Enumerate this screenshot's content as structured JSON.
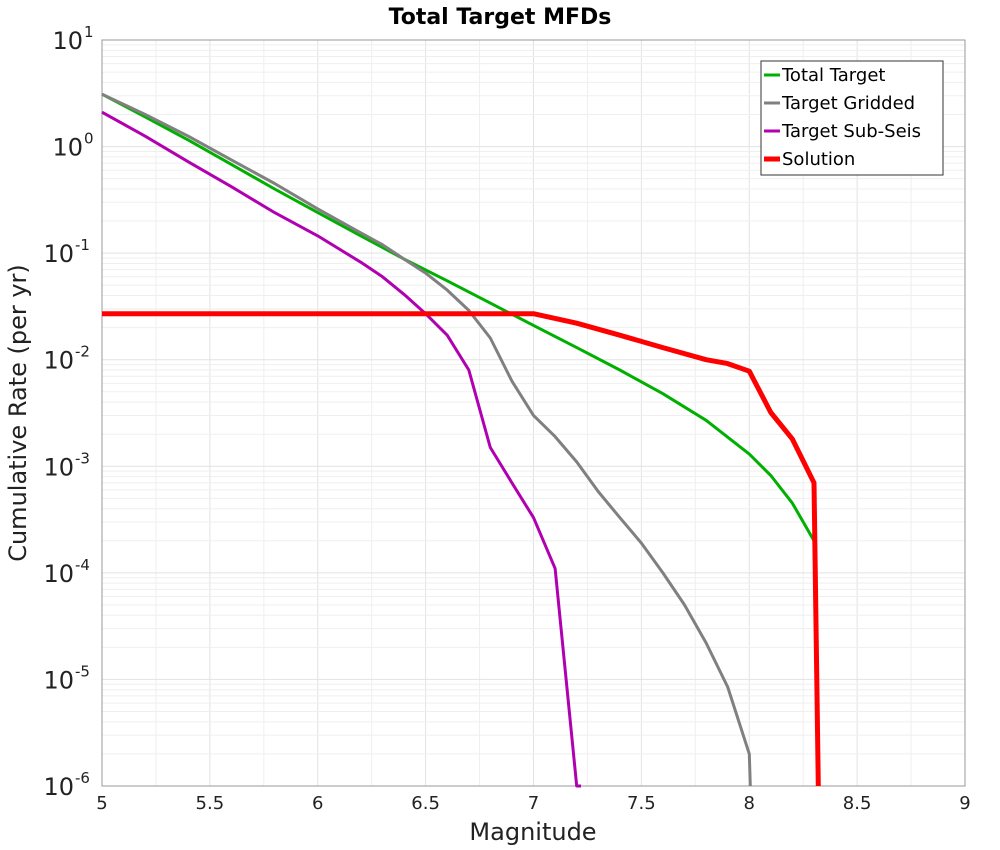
{
  "chart_data": {
    "type": "line",
    "title": "Total Target MFDs",
    "xlabel": "Magnitude",
    "ylabel": "Cumulative Rate (per yr)",
    "xlim": [
      5,
      9
    ],
    "ylim": [
      1e-06,
      10
    ],
    "yscale": "log",
    "x_ticks": [
      "5",
      "5.5",
      "6",
      "6.5",
      "7",
      "7.5",
      "8",
      "8.5",
      "9"
    ],
    "y_ticks": [
      {
        "base": "10",
        "exp": "1"
      },
      {
        "base": "10",
        "exp": "0"
      },
      {
        "base": "10",
        "exp": "-1"
      },
      {
        "base": "10",
        "exp": "-2"
      },
      {
        "base": "10",
        "exp": "-3"
      },
      {
        "base": "10",
        "exp": "-4"
      },
      {
        "base": "10",
        "exp": "-5"
      },
      {
        "base": "10",
        "exp": "-6"
      }
    ],
    "grid": true,
    "legend_position": "top-right",
    "series": [
      {
        "name": "Total Target",
        "color": "#00b000",
        "width": 3,
        "x": [
          5.0,
          5.2,
          5.4,
          5.6,
          5.8,
          6.0,
          6.2,
          6.4,
          6.6,
          6.8,
          7.0,
          7.2,
          7.4,
          7.6,
          7.8,
          8.0,
          8.1,
          8.2,
          8.3
        ],
        "y": [
          3.1,
          1.9,
          1.15,
          0.68,
          0.4,
          0.24,
          0.145,
          0.088,
          0.055,
          0.034,
          0.021,
          0.013,
          0.008,
          0.0048,
          0.0027,
          0.0013,
          0.00082,
          0.00045,
          0.0002
        ]
      },
      {
        "name": "Target Gridded",
        "color": "#808080",
        "width": 3,
        "x": [
          5.0,
          5.2,
          5.4,
          5.6,
          5.8,
          6.0,
          6.2,
          6.3,
          6.4,
          6.5,
          6.6,
          6.7,
          6.8,
          6.9,
          7.0,
          7.1,
          7.2,
          7.3,
          7.4,
          7.5,
          7.6,
          7.7,
          7.8,
          7.9,
          8.0,
          8.005
        ],
        "y": [
          3.1,
          2.0,
          1.25,
          0.75,
          0.45,
          0.26,
          0.155,
          0.12,
          0.088,
          0.065,
          0.045,
          0.029,
          0.016,
          0.0063,
          0.003,
          0.0019,
          0.0011,
          0.00058,
          0.00033,
          0.00019,
          0.0001,
          5e-05,
          2.2e-05,
          8.5e-06,
          2e-06,
          1e-06
        ]
      },
      {
        "name": "Target Sub-Seis",
        "color": "#b000b0",
        "width": 3,
        "x": [
          5.0,
          5.2,
          5.4,
          5.6,
          5.8,
          6.0,
          6.2,
          6.3,
          6.4,
          6.5,
          6.6,
          6.7,
          6.8,
          6.9,
          7.0,
          7.1,
          7.2,
          7.22
        ],
        "y": [
          2.1,
          1.25,
          0.72,
          0.42,
          0.24,
          0.145,
          0.082,
          0.06,
          0.041,
          0.027,
          0.017,
          0.008,
          0.0015,
          0.0007,
          0.00033,
          0.00011,
          1e-06,
          1e-06
        ]
      },
      {
        "name": "Solution",
        "color": "#ff0000",
        "width": 5,
        "x": [
          5.0,
          5.5,
          6.0,
          6.5,
          6.9,
          7.0,
          7.2,
          7.4,
          7.6,
          7.8,
          7.9,
          8.0,
          8.1,
          8.2,
          8.3,
          8.32
        ],
        "y": [
          0.027,
          0.027,
          0.027,
          0.027,
          0.027,
          0.027,
          0.022,
          0.017,
          0.013,
          0.01,
          0.0092,
          0.0078,
          0.0032,
          0.0018,
          0.0007,
          1e-06
        ]
      }
    ]
  }
}
